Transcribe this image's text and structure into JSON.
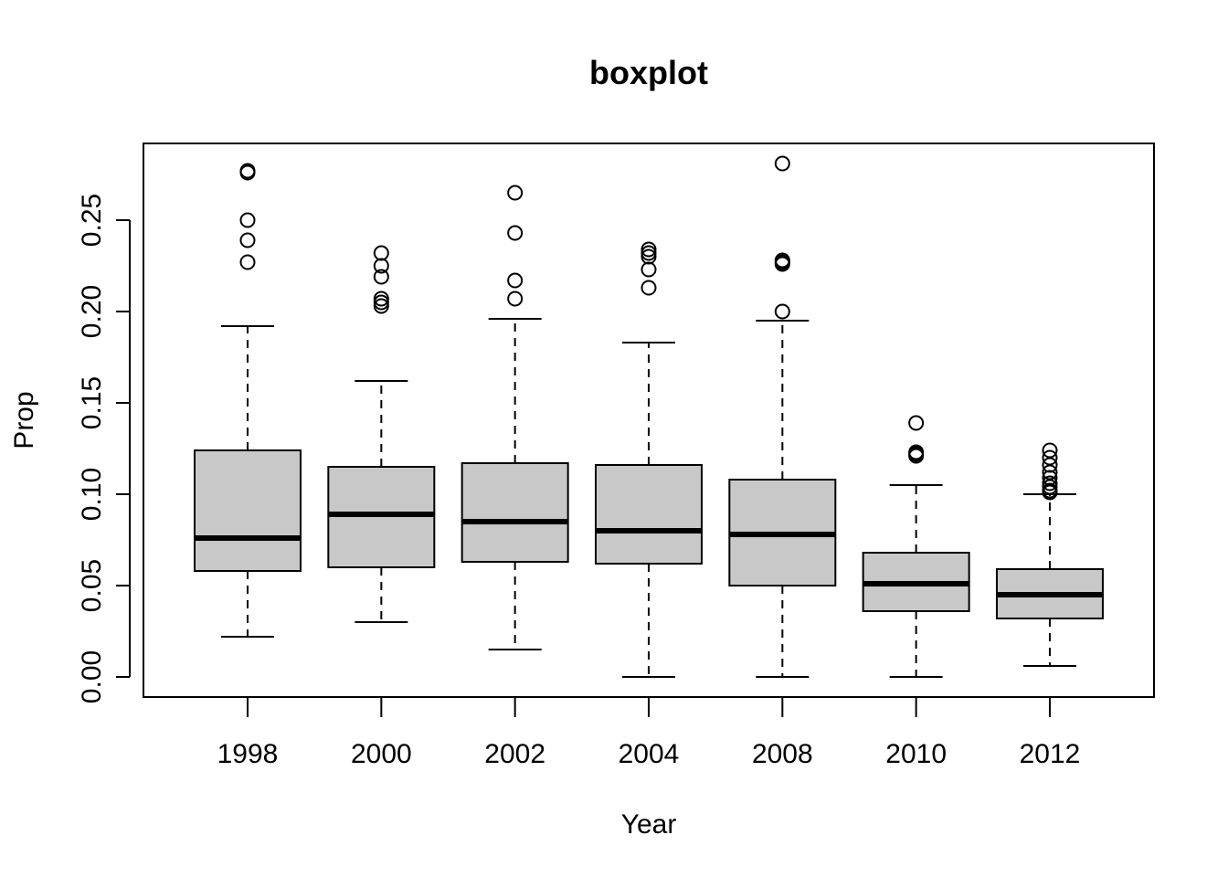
{
  "chart_data": {
    "type": "boxplot",
    "title": "boxplot",
    "xlabel": "Year",
    "ylabel": "Prop",
    "ylim": [
      -0.011,
      0.292
    ],
    "yticks": [
      0.0,
      0.05,
      0.1,
      0.15,
      0.2,
      0.25
    ],
    "ytick_labels": [
      "0.00",
      "0.05",
      "0.10",
      "0.15",
      "0.20",
      "0.25"
    ],
    "grid": false,
    "box_fill": "#c8c8c8",
    "categories": [
      "1998",
      "2000",
      "2002",
      "2004",
      "2008",
      "2010",
      "2012"
    ],
    "boxes": [
      {
        "category": "1998",
        "whisker_low": 0.022,
        "q1": 0.058,
        "median": 0.076,
        "q3": 0.124,
        "whisker_high": 0.192,
        "outliers": [
          0.227,
          0.239,
          0.25,
          0.276,
          0.277
        ]
      },
      {
        "category": "2000",
        "whisker_low": 0.03,
        "q1": 0.06,
        "median": 0.089,
        "q3": 0.115,
        "whisker_high": 0.162,
        "outliers": [
          0.203,
          0.205,
          0.207,
          0.219,
          0.225,
          0.232
        ]
      },
      {
        "category": "2002",
        "whisker_low": 0.015,
        "q1": 0.063,
        "median": 0.085,
        "q3": 0.117,
        "whisker_high": 0.196,
        "outliers": [
          0.207,
          0.217,
          0.243,
          0.265
        ]
      },
      {
        "category": "2004",
        "whisker_low": 0.0,
        "q1": 0.062,
        "median": 0.08,
        "q3": 0.116,
        "whisker_high": 0.183,
        "outliers": [
          0.213,
          0.223,
          0.23,
          0.232,
          0.234
        ]
      },
      {
        "category": "2008",
        "whisker_low": 0.0,
        "q1": 0.05,
        "median": 0.078,
        "q3": 0.108,
        "whisker_high": 0.195,
        "outliers": [
          0.2,
          0.226,
          0.227,
          0.228,
          0.281
        ]
      },
      {
        "category": "2010",
        "whisker_low": 0.0,
        "q1": 0.036,
        "median": 0.051,
        "q3": 0.068,
        "whisker_high": 0.105,
        "outliers": [
          0.121,
          0.122,
          0.123,
          0.139
        ]
      },
      {
        "category": "2012",
        "whisker_low": 0.006,
        "q1": 0.032,
        "median": 0.045,
        "q3": 0.059,
        "whisker_high": 0.1,
        "outliers": [
          0.101,
          0.102,
          0.104,
          0.106,
          0.109,
          0.112,
          0.116,
          0.12,
          0.124
        ]
      }
    ]
  }
}
